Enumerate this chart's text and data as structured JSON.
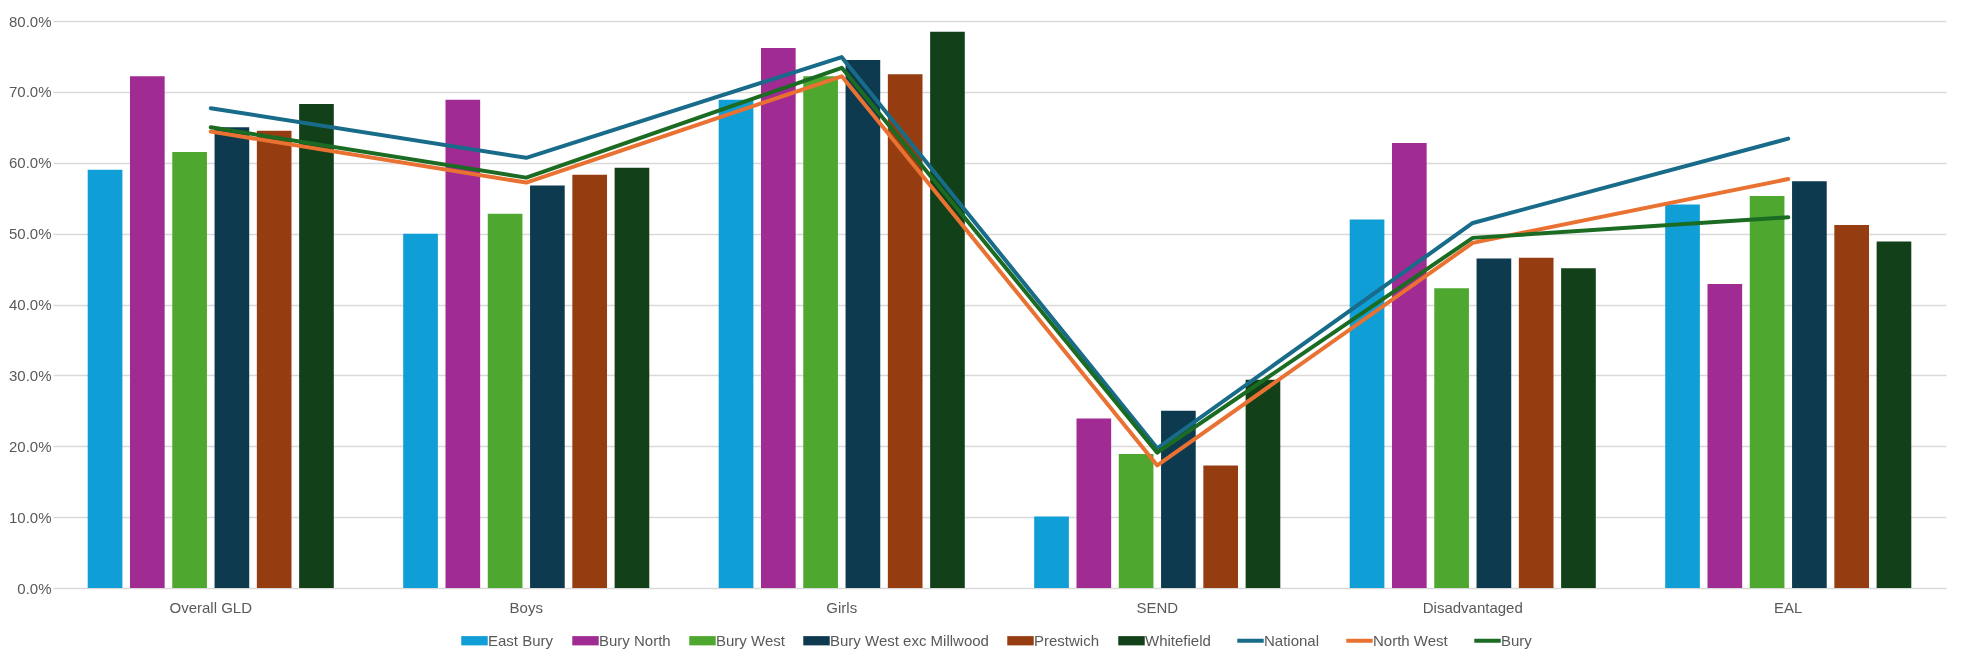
{
  "chart_data": {
    "type": "bar",
    "categories": [
      "Overall GLD",
      "Boys",
      "Girls",
      "SEND",
      "Disadvantaged",
      "EAL"
    ],
    "series": [
      {
        "name": "East Bury",
        "color": "#0f9ed5",
        "values": [
          59.0,
          50.0,
          68.9,
          10.1,
          52.0,
          54.1
        ]
      },
      {
        "name": "Bury North",
        "color": "#a02b93",
        "values": [
          72.2,
          68.9,
          76.2,
          23.9,
          62.8,
          42.9
        ]
      },
      {
        "name": "Bury West",
        "color": "#4ea72e",
        "values": [
          61.5,
          52.8,
          72.2,
          18.9,
          42.3,
          55.3
        ]
      },
      {
        "name": "Bury West exc Millwood",
        "color": "#0d3a4f",
        "values": [
          65.0,
          56.8,
          74.5,
          25.0,
          46.5,
          57.4
        ]
      },
      {
        "name": "Prestwich",
        "color": "#953d11",
        "values": [
          64.5,
          58.3,
          72.5,
          17.3,
          46.6,
          51.2
        ]
      },
      {
        "name": "Whitefield",
        "color": "#124018",
        "values": [
          68.3,
          59.3,
          78.5,
          29.4,
          45.1,
          48.9
        ]
      },
      {
        "name": "National",
        "type": "line",
        "color": "#196b8a",
        "values": [
          67.7,
          60.7,
          74.9,
          19.7,
          51.5,
          63.4
        ]
      },
      {
        "name": "North West",
        "type": "line",
        "color": "#e97132",
        "values": [
          64.4,
          57.2,
          72.2,
          17.3,
          48.7,
          57.7
        ]
      },
      {
        "name": "Bury",
        "type": "line",
        "color": "#1b6b23",
        "values": [
          65.0,
          57.9,
          73.4,
          19.1,
          49.4,
          52.3
        ]
      }
    ],
    "ylim": [
      0,
      80
    ],
    "yticks": [
      {
        "value": 0,
        "label": "0.0%"
      },
      {
        "value": 10,
        "label": "10.0%"
      },
      {
        "value": 20,
        "label": "20.0%"
      },
      {
        "value": 30,
        "label": "30.0%"
      },
      {
        "value": 40,
        "label": "40.0%"
      },
      {
        "value": 50,
        "label": "50.0%"
      },
      {
        "value": 60,
        "label": "60.0%"
      },
      {
        "value": 70,
        "label": "70.0%"
      },
      {
        "value": 80,
        "label": "80.0%"
      }
    ],
    "grid": "y",
    "legend": "bottom"
  }
}
